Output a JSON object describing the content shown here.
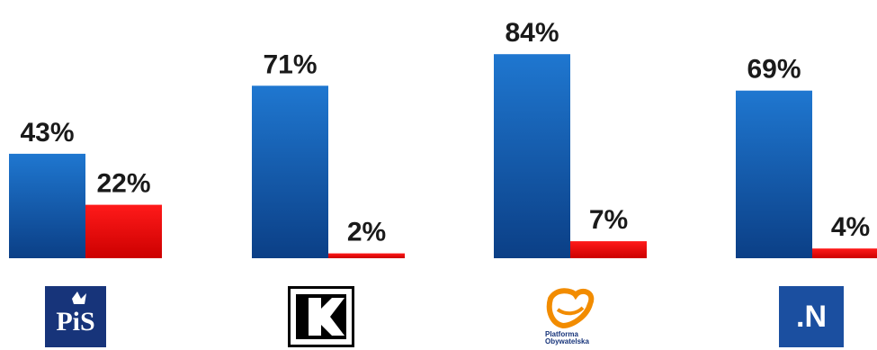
{
  "chart_data": {
    "type": "bar",
    "categories": [
      "PiS",
      "Kukiz'15",
      "Platforma Obywatelska",
      "Nowoczesna"
    ],
    "series": [
      {
        "values": [
          43,
          71,
          84,
          69
        ],
        "labels": [
          "43%",
          "71%",
          "84%",
          "69%"
        ]
      },
      {
        "values": [
          22,
          2,
          7,
          4
        ],
        "labels": [
          "22%",
          "2%",
          "7%",
          "4%"
        ]
      }
    ],
    "ylim": [
      0,
      100
    ],
    "grid": false,
    "legend": "none"
  },
  "logos": {
    "pis_text": "PiS",
    "po_text_1": "Platforma",
    "po_text_2": "Obywatelska",
    "n_text": ".N"
  },
  "colors": {
    "blue_top": "#1f77d0",
    "blue_bottom": "#0b3f86",
    "red_top": "#ff1a1a",
    "red_bottom": "#cc0000",
    "po_orange": "#f28c00"
  },
  "icons": [
    "pis-logo",
    "kukiz-logo",
    "po-logo",
    "nowoczesna-logo"
  ]
}
